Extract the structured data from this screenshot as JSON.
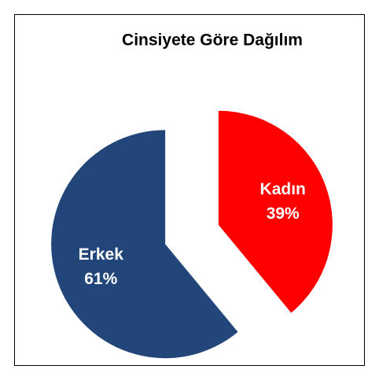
{
  "chart_data": {
    "type": "pie",
    "title": "Cinsiyete Göre Dağılım",
    "categories": [
      "Kadın",
      "Erkek"
    ],
    "values": [
      39,
      61
    ],
    "value_labels": [
      "39%",
      "61%"
    ],
    "colors": [
      "#ff0000",
      "#23467a"
    ]
  }
}
